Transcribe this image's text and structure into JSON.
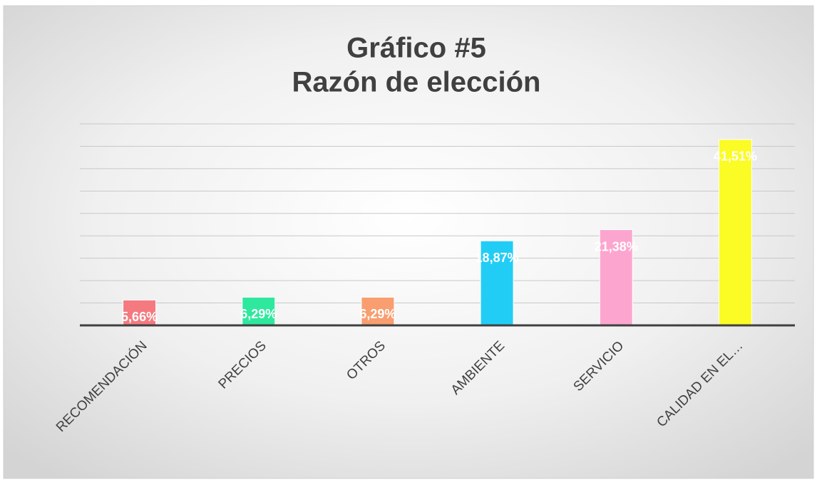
{
  "chart_data": {
    "type": "bar",
    "title": "Gráfico #5",
    "subtitle": "Razón de elección",
    "categories": [
      "RECOMENDACIÓN",
      "PRECIOS",
      "OTROS",
      "AMBIENTE",
      "SERVICIO",
      "CALIDAD EN EL…"
    ],
    "values": [
      5.66,
      6.29,
      6.29,
      18.87,
      21.38,
      41.51
    ],
    "value_labels": [
      "5,66%",
      "6,29%",
      "6,29%",
      "18,87%",
      "21,38%",
      "41,51%"
    ],
    "colors": [
      "#f47a80",
      "#2ee89e",
      "#f89e70",
      "#22cdf5",
      "#fca6cf",
      "#fbfb26"
    ],
    "ylim": [
      0,
      45
    ],
    "yticks": [
      0,
      5,
      10,
      15,
      20,
      25,
      30,
      35,
      40,
      45
    ],
    "grid": true
  }
}
